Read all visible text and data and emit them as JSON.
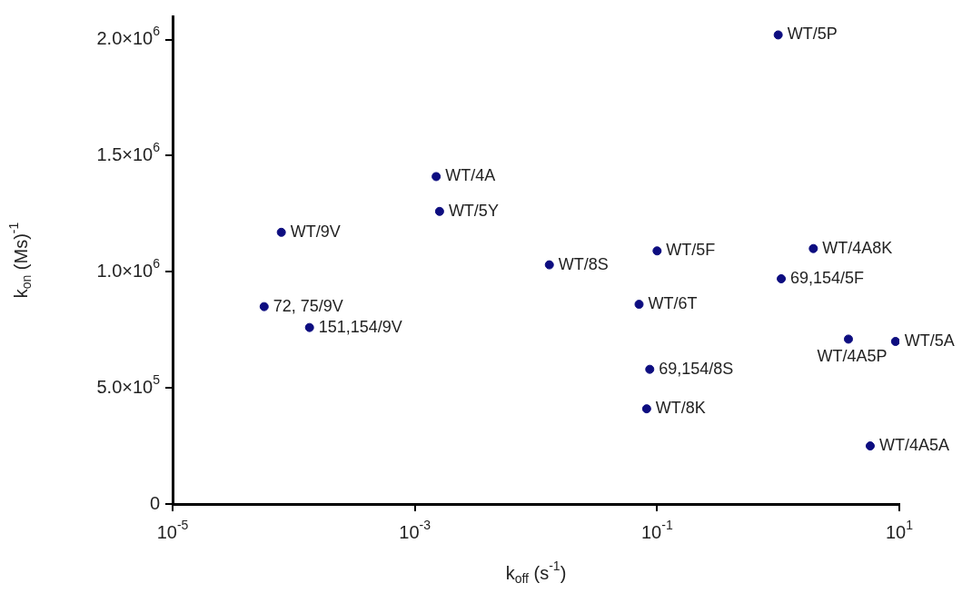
{
  "chart_data": {
    "type": "scatter",
    "xlabel": "k$_{off}$ (s$^{-1}$)",
    "ylabel": "k$_{on}$ (Ms)$^{-1}$",
    "log": "x",
    "marker": "circle",
    "color": "#0d0d80",
    "x": [
      1,
      0.0015,
      0.0016,
      7.9e-05,
      5.7e-05,
      0.000135,
      0.0129,
      0.1,
      0.071,
      0.087,
      0.082,
      1.95,
      1.06,
      3.8,
      9.3,
      5.75
    ],
    "values": [
      2020000,
      1410000,
      1260000,
      1170000,
      850000,
      760000,
      1030000,
      1090000,
      860000,
      580000,
      410000,
      1100000,
      970000,
      710000,
      700000,
      250000
    ],
    "xlim": [
      1e-05,
      10
    ],
    "ylim": [
      0,
      2100000
    ],
    "xticks": [
      {
        "value": 1e-05,
        "label": "10$^{-5}$"
      },
      {
        "value": 0.001,
        "label": "10$^{-3}$"
      },
      {
        "value": 0.1,
        "label": "10$^{-1}$"
      },
      {
        "value": 10,
        "label": "10$^{1}$"
      }
    ],
    "yticks": [
      0,
      {
        "value": 500000,
        "label": "5.0×10$^{5}$"
      },
      {
        "value": 1000000,
        "label": "1.0×10$^{6}$"
      },
      {
        "value": 1500000,
        "label": "1.5×10$^{6}$"
      },
      {
        "value": 2000000,
        "label": "2.0×10$^{6}$"
      }
    ],
    "annotations": [
      {
        "text": "WT/5P",
        "x": 1,
        "y": 2020000
      },
      {
        "text": "WT/4A",
        "x": 0.0015,
        "y": 1410000
      },
      {
        "text": "WT/5Y",
        "x": 0.0016,
        "y": 1260000
      },
      {
        "text": "WT/9V",
        "x": 7.9e-05,
        "y": 1170000
      },
      {
        "text": "72, 75/9V",
        "x": 5.7e-05,
        "y": 850000
      },
      {
        "text": "151,154/9V",
        "x": 0.000135,
        "y": 760000
      },
      {
        "text": "WT/8S",
        "x": 0.0129,
        "y": 1030000
      },
      {
        "text": "WT/5F",
        "x": 0.1,
        "y": 1090000
      },
      {
        "text": "WT/6T",
        "x": 0.071,
        "y": 860000
      },
      {
        "text": "69,154/8S",
        "x": 0.087,
        "y": 580000
      },
      {
        "text": "WT/8K",
        "x": 0.082,
        "y": 410000
      },
      {
        "text": "WT/4A8K",
        "x": 1.95,
        "y": 1100000
      },
      {
        "text": "69,154/5F",
        "x": 1.06,
        "y": 970000
      },
      {
        "text": "WT/4A5P",
        "x": 3.8,
        "y": 710000
      },
      {
        "text": "WT/5A",
        "x": 9.3,
        "y": 700000
      },
      {
        "text": "WT/4A5A",
        "x": 5.75,
        "y": 250000
      }
    ]
  }
}
